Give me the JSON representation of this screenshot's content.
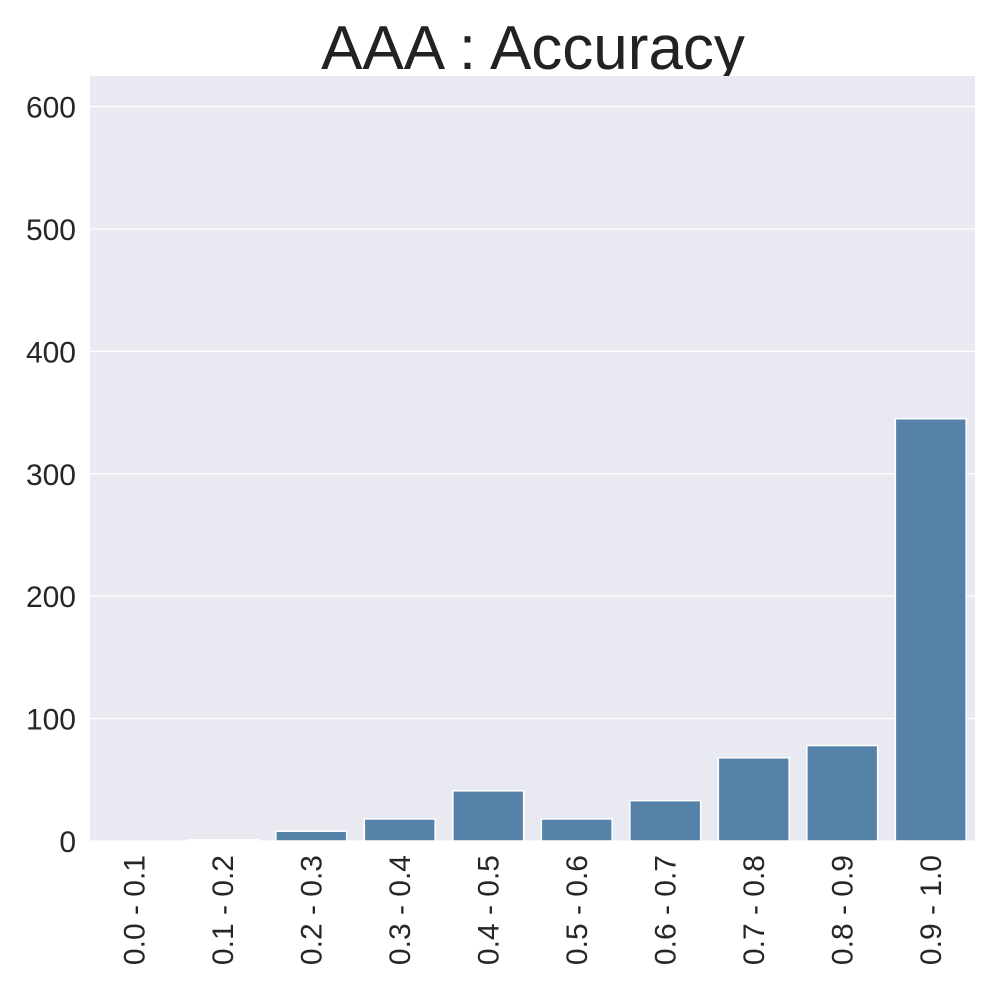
{
  "chart_data": {
    "type": "bar",
    "title": "AAA : Accuracy",
    "xlabel": "",
    "ylabel": "",
    "categories": [
      "0.0 - 0.1",
      "0.1 - 0.2",
      "0.2 - 0.3",
      "0.3 - 0.4",
      "0.4 - 0.5",
      "0.5 - 0.6",
      "0.6 - 0.7",
      "0.7 - 0.8",
      "0.8 - 0.9",
      "0.9 - 1.0"
    ],
    "values": [
      0,
      1,
      8,
      18,
      41,
      18,
      33,
      68,
      78,
      345
    ],
    "ylim": [
      0,
      625
    ],
    "yticks": [
      0,
      100,
      200,
      300,
      400,
      500,
      600
    ],
    "grid": true,
    "legend": "none",
    "colors": {
      "bar": "#5682a9",
      "plot_background": "#e9e9f2",
      "grid": "#ffffff",
      "text": "#262626"
    }
  }
}
